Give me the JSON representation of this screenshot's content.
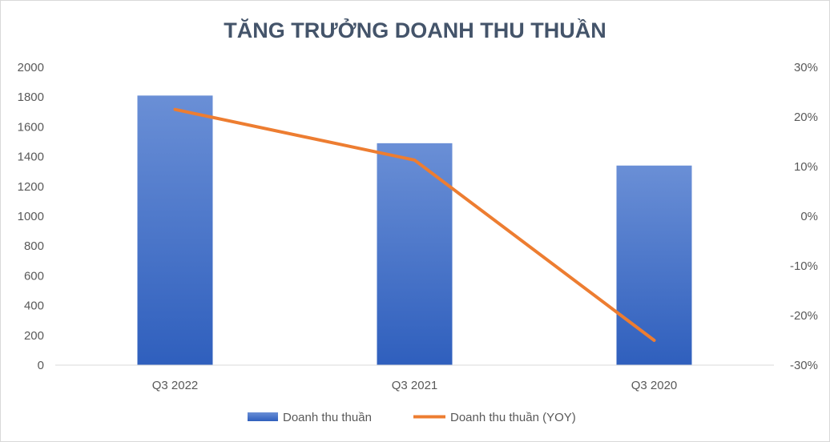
{
  "chart_data": {
    "type": "bar",
    "title": "TĂNG TRƯỞNG DOANH THU THUẦN",
    "categories": [
      "Q3 2022",
      "Q3 2021",
      "Q3 2020"
    ],
    "series": [
      {
        "name": "Doanh thu thuần",
        "type": "bar",
        "axis": "left",
        "values": [
          1810,
          1490,
          1340
        ],
        "color": "#4472c4"
      },
      {
        "name": "Doanh thu thuần (YOY)",
        "type": "line",
        "axis": "right",
        "values": [
          0.215,
          0.113,
          -0.25
        ],
        "color": "#ed7d31"
      }
    ],
    "y_left": {
      "lim": [
        0,
        2000
      ],
      "ticks": [
        0,
        200,
        400,
        600,
        800,
        1000,
        1200,
        1400,
        1600,
        1800,
        2000
      ],
      "tick_labels": [
        "0",
        "200",
        "400",
        "600",
        "800",
        "1000",
        "1200",
        "1400",
        "1600",
        "1800",
        "2000"
      ]
    },
    "y_right": {
      "lim": [
        -0.3,
        0.3
      ],
      "ticks": [
        -0.3,
        -0.2,
        -0.1,
        0,
        0.1,
        0.2,
        0.3
      ],
      "tick_labels": [
        "-30%",
        "-20%",
        "-10%",
        "0%",
        "10%",
        "20%",
        "30%"
      ]
    },
    "grid": false,
    "legend_position": "bottom"
  }
}
